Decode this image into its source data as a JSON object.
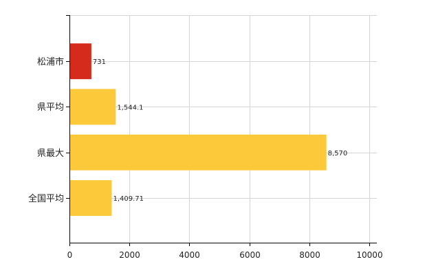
{
  "chart_data": {
    "type": "bar",
    "orientation": "horizontal",
    "categories": [
      "松浦市",
      "県平均",
      "県最大",
      "全国平均"
    ],
    "values": [
      731,
      1544.1,
      8570,
      1409.71
    ],
    "data_labels": [
      "731",
      "1,544.1",
      "8,570",
      "1,409.71"
    ],
    "bar_colors": [
      "#d42b1c",
      "#fbc93a",
      "#fbc93a",
      "#fbc93a"
    ],
    "xlim": [
      0,
      10000
    ],
    "xticks": [
      0,
      2000,
      4000,
      6000,
      8000,
      10000
    ],
    "grid": true,
    "title": "",
    "xlabel": "",
    "ylabel": ""
  }
}
